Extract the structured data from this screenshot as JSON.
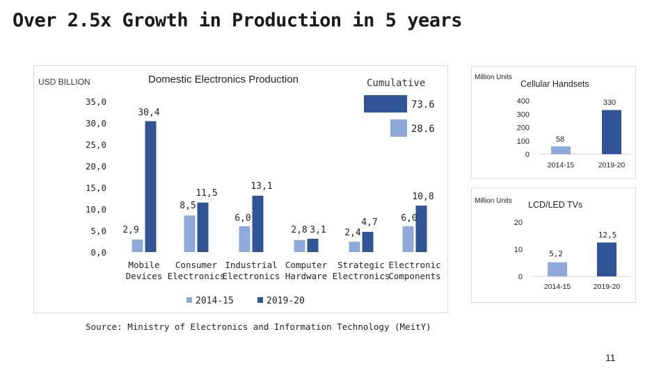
{
  "title": "Over 2.5x Growth in Production in 5 years",
  "source": "Source: Ministry of Electronics and Information Technology (MeitY)",
  "page_number": "11",
  "colors": {
    "series_2014_15": "#8eaadb",
    "series_2019_20": "#2f5597"
  },
  "chart_data": [
    {
      "type": "bar",
      "title": "Domestic Electronics Production",
      "unit_label": "USD BILLION",
      "categories": [
        [
          "Mobile",
          "Devices"
        ],
        [
          "Consumer",
          "Electronics"
        ],
        [
          "Industrial",
          "Electronics"
        ],
        [
          "Computer",
          "Hardware"
        ],
        [
          "Strategic",
          "Electronics"
        ],
        [
          "Electronic",
          "Components"
        ]
      ],
      "series": [
        {
          "name": "2014-15",
          "values": [
            2.9,
            8.5,
            6.0,
            2.8,
            2.4,
            6.0
          ],
          "labels": [
            "2,9",
            "8,5",
            "6,0",
            "2,8",
            "2,4",
            "6,0"
          ]
        },
        {
          "name": "2019-20",
          "values": [
            30.4,
            11.5,
            13.1,
            3.1,
            4.7,
            10.8
          ],
          "labels": [
            "30,4",
            "11,5",
            "13,1",
            "3,1",
            "4,7",
            "10,8"
          ]
        }
      ],
      "ylim": [
        0,
        35
      ],
      "yticks": [
        "0,0",
        "5,0",
        "10,0",
        "15,0",
        "20,0",
        "25,0",
        "30,0",
        "35,0"
      ],
      "legend_position": "bottom",
      "grid": false,
      "inset": {
        "type": "bar",
        "orientation": "horizontal",
        "title": "Cumulative",
        "values": [
          73.6,
          28.6
        ],
        "labels": [
          "73.6",
          "28.6"
        ]
      }
    },
    {
      "type": "bar",
      "title": "Cellular Handsets",
      "unit_label": "Million Units",
      "categories": [
        "2014-15",
        "2019-20"
      ],
      "values": [
        58,
        330
      ],
      "labels": [
        "58",
        "330"
      ],
      "ylim": [
        0,
        400
      ],
      "yticks": [
        "0",
        "100",
        "200",
        "300",
        "400"
      ],
      "grid": false
    },
    {
      "type": "bar",
      "title": "LCD/LED TVs",
      "unit_label": "Million Units",
      "categories": [
        "2014-15",
        "2019-20"
      ],
      "values": [
        5.2,
        12.5
      ],
      "labels": [
        "5,2",
        "12,5"
      ],
      "ylim": [
        0,
        20
      ],
      "yticks": [
        "0",
        "10",
        "20"
      ],
      "grid": false
    }
  ]
}
